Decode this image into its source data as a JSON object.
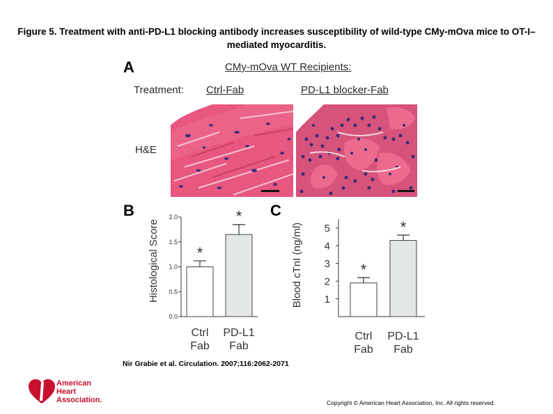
{
  "title": "Figure 5. Treatment with anti-PD-L1 blocking antibody increases susceptibility of wild-type CMy-mOva mice to OT-I–mediated myocarditis.",
  "panel_a": {
    "letter": "A",
    "heading": "CMy-mOva WT Recipients:",
    "treatment_label": "Treatment:",
    "treatments": [
      "Ctrl-Fab",
      "PD-L1 blocker-Fab"
    ],
    "stain_label": "H&E"
  },
  "chart_data": [
    {
      "type": "bar",
      "panel": "B",
      "categories": [
        "Ctrl Fab",
        "PD-L1 Fab"
      ],
      "values": [
        1.0,
        1.65
      ],
      "errors": [
        0.12,
        0.2
      ],
      "ylabel": "Histological Score",
      "ylim": [
        0.0,
        2.0
      ],
      "yticks": [
        "0.0",
        "0.5",
        "1.0",
        "1.5",
        "2.0"
      ],
      "annotations": [
        "*",
        "*"
      ],
      "colors": [
        "#ffffff",
        "#e3e8e6"
      ]
    },
    {
      "type": "bar",
      "panel": "C",
      "categories": [
        "Ctrl Fab",
        "PD-L1 Fab"
      ],
      "values": [
        1.9,
        4.3
      ],
      "errors": [
        0.3,
        0.3
      ],
      "ylabel": "Blood cTnI (ng/ml)",
      "ylim": [
        0,
        5.5
      ],
      "yticks": [
        "1",
        "2",
        "3",
        "4",
        "5"
      ],
      "annotations": [
        "*",
        "*"
      ],
      "colors": [
        "#ffffff",
        "#e3e8e6"
      ]
    }
  ],
  "panel_b_letter": "B",
  "panel_c_letter": "C",
  "citation": "Nir Grabie et al. Circulation. 2007;116:2062-2071",
  "copyright": "Copyright © American Heart Association, Inc. All rights reserved.",
  "logo": {
    "line1": "American",
    "line2": "Heart",
    "line3": "Association.",
    "icon": "heart-torch-icon",
    "color": "#c8102e"
  }
}
